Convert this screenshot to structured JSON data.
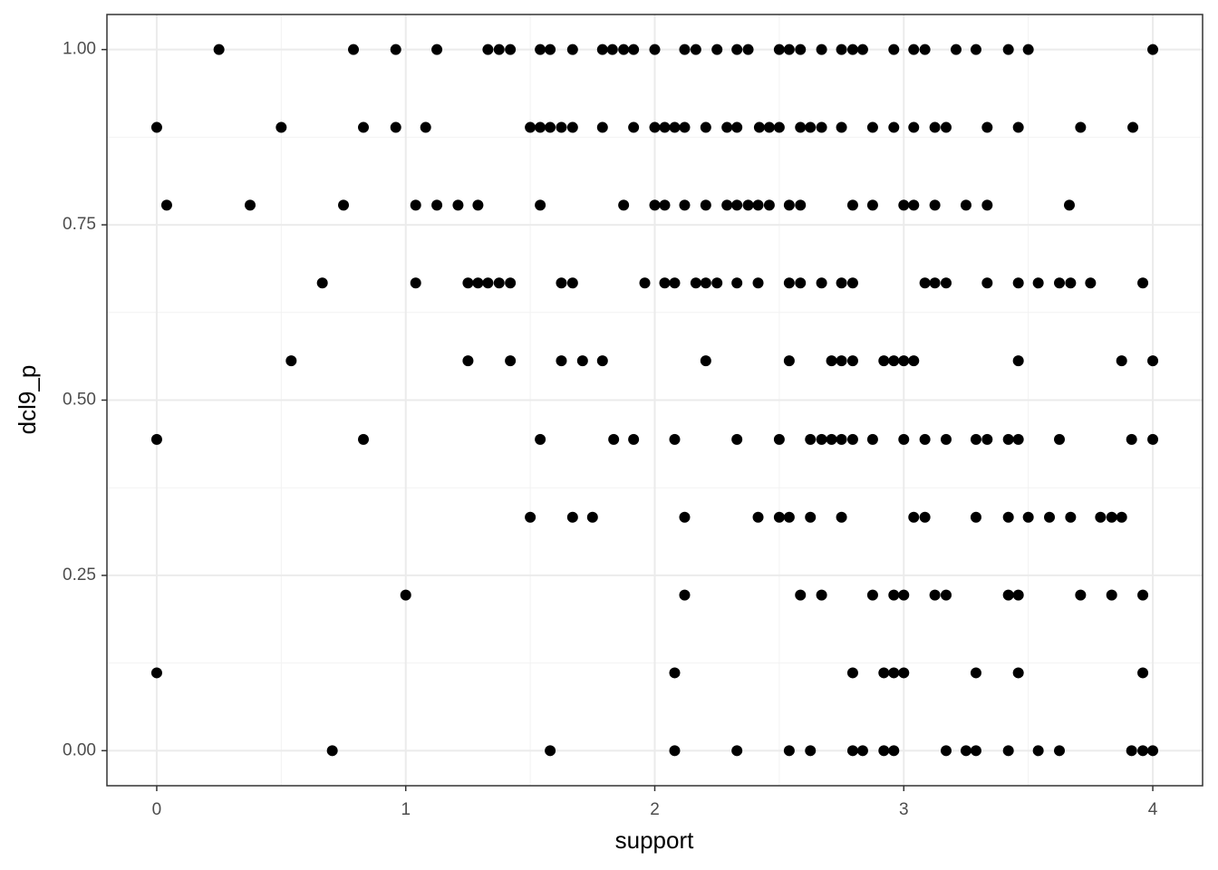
{
  "chart_data": {
    "type": "scatter",
    "xlabel": "support",
    "ylabel": "dcl9_p",
    "color": "#000000",
    "grid": true,
    "xlim": [
      -0.2,
      4.2
    ],
    "ylim": [
      -0.05,
      1.05
    ],
    "xticks": [
      0,
      1,
      2,
      3,
      4
    ],
    "yticks": [
      {
        "value": 0,
        "label": "0.00"
      },
      {
        "value": 0.25,
        "label": "0.25"
      },
      {
        "value": 0.5,
        "label": "0.50"
      },
      {
        "value": 0.75,
        "label": "0.75"
      },
      {
        "value": 1,
        "label": "1.00"
      }
    ],
    "x": [
      0.25,
      0.79,
      0.96,
      1.125,
      1.33,
      1.375,
      1.42,
      1.54,
      1.58,
      1.67,
      1.79,
      1.83,
      1.875,
      1.915,
      2.0,
      2.12,
      2.165,
      2.25,
      2.33,
      2.375,
      2.5,
      2.54,
      2.585,
      2.67,
      2.75,
      2.795,
      2.835,
      2.96,
      3.04,
      3.085,
      3.21,
      3.29,
      3.42,
      3.5,
      4.0,
      0,
      0.5,
      0.83,
      0.96,
      1.08,
      1.5,
      1.54,
      1.58,
      1.625,
      1.67,
      1.79,
      1.915,
      2.0,
      2.04,
      2.08,
      2.12,
      2.205,
      2.29,
      2.33,
      2.42,
      2.46,
      2.5,
      2.585,
      2.625,
      2.67,
      2.75,
      2.875,
      2.96,
      3.04,
      3.125,
      3.17,
      3.335,
      3.46,
      3.71,
      3.92,
      0.04,
      0.375,
      0.75,
      1.04,
      1.125,
      1.21,
      1.29,
      1.54,
      1.875,
      2.0,
      2.04,
      2.12,
      2.205,
      2.29,
      2.33,
      2.375,
      2.415,
      2.46,
      2.54,
      2.585,
      2.795,
      2.875,
      3.0,
      3.04,
      3.125,
      3.25,
      3.335,
      3.665,
      0.665,
      1.04,
      1.25,
      1.29,
      1.33,
      1.375,
      1.42,
      1.625,
      1.67,
      1.96,
      2.04,
      2.08,
      2.165,
      2.205,
      2.25,
      2.33,
      2.415,
      2.54,
      2.585,
      2.67,
      2.75,
      2.795,
      3.085,
      3.125,
      3.17,
      3.335,
      3.46,
      3.54,
      3.625,
      3.67,
      3.75,
      3.96,
      0.54,
      1.25,
      1.42,
      1.625,
      1.71,
      1.79,
      2.205,
      2.54,
      2.71,
      2.75,
      2.795,
      2.92,
      2.96,
      3.0,
      3.04,
      3.46,
      3.875,
      4.0,
      0,
      0.83,
      1.54,
      1.835,
      1.915,
      2.08,
      2.33,
      2.5,
      2.625,
      2.67,
      2.71,
      2.75,
      2.795,
      2.875,
      3.0,
      3.085,
      3.17,
      3.29,
      3.335,
      3.42,
      3.46,
      3.625,
      3.915,
      4.0,
      1.5,
      1.67,
      1.75,
      2.12,
      2.415,
      2.5,
      2.54,
      2.625,
      2.75,
      3.04,
      3.085,
      3.29,
      3.42,
      3.5,
      3.585,
      3.67,
      3.79,
      3.835,
      3.875,
      1.0,
      2.12,
      2.585,
      2.67,
      2.875,
      2.96,
      3.0,
      3.125,
      3.17,
      3.42,
      3.46,
      3.71,
      3.835,
      3.96,
      0,
      2.08,
      2.795,
      2.92,
      2.96,
      3.0,
      3.29,
      3.46,
      3.96,
      0.705,
      1.58,
      2.08,
      2.33,
      2.54,
      2.625,
      2.795,
      2.835,
      2.92,
      2.96,
      3.17,
      3.25,
      3.29,
      3.42,
      3.54,
      3.625,
      3.915,
      3.96,
      4.0
    ],
    "y": [
      1,
      1,
      1,
      1,
      1,
      1,
      1,
      1,
      1,
      1,
      1,
      1,
      1,
      1,
      1,
      1,
      1,
      1,
      1,
      1,
      1,
      1,
      1,
      1,
      1,
      1,
      1,
      1,
      1,
      1,
      1,
      1,
      1,
      1,
      1,
      0.889,
      0.889,
      0.889,
      0.889,
      0.889,
      0.889,
      0.889,
      0.889,
      0.889,
      0.889,
      0.889,
      0.889,
      0.889,
      0.889,
      0.889,
      0.889,
      0.889,
      0.889,
      0.889,
      0.889,
      0.889,
      0.889,
      0.889,
      0.889,
      0.889,
      0.889,
      0.889,
      0.889,
      0.889,
      0.889,
      0.889,
      0.889,
      0.889,
      0.889,
      0.889,
      0.778,
      0.778,
      0.778,
      0.778,
      0.778,
      0.778,
      0.778,
      0.778,
      0.778,
      0.778,
      0.778,
      0.778,
      0.778,
      0.778,
      0.778,
      0.778,
      0.778,
      0.778,
      0.778,
      0.778,
      0.778,
      0.778,
      0.778,
      0.778,
      0.778,
      0.778,
      0.778,
      0.778,
      0.667,
      0.667,
      0.667,
      0.667,
      0.667,
      0.667,
      0.667,
      0.667,
      0.667,
      0.667,
      0.667,
      0.667,
      0.667,
      0.667,
      0.667,
      0.667,
      0.667,
      0.667,
      0.667,
      0.667,
      0.667,
      0.667,
      0.667,
      0.667,
      0.667,
      0.667,
      0.667,
      0.667,
      0.667,
      0.667,
      0.667,
      0.667,
      0.556,
      0.556,
      0.556,
      0.556,
      0.556,
      0.556,
      0.556,
      0.556,
      0.556,
      0.556,
      0.556,
      0.556,
      0.556,
      0.556,
      0.556,
      0.556,
      0.556,
      0.556,
      0.444,
      0.444,
      0.444,
      0.444,
      0.444,
      0.444,
      0.444,
      0.444,
      0.444,
      0.444,
      0.444,
      0.444,
      0.444,
      0.444,
      0.444,
      0.444,
      0.444,
      0.444,
      0.444,
      0.444,
      0.444,
      0.444,
      0.444,
      0.444,
      0.333,
      0.333,
      0.333,
      0.333,
      0.333,
      0.333,
      0.333,
      0.333,
      0.333,
      0.333,
      0.333,
      0.333,
      0.333,
      0.333,
      0.333,
      0.333,
      0.333,
      0.333,
      0.333,
      0.222,
      0.222,
      0.222,
      0.222,
      0.222,
      0.222,
      0.222,
      0.222,
      0.222,
      0.222,
      0.222,
      0.222,
      0.222,
      0.222,
      0.111,
      0.111,
      0.111,
      0.111,
      0.111,
      0.111,
      0.111,
      0.111,
      0.111,
      0,
      0,
      0,
      0,
      0,
      0,
      0,
      0,
      0,
      0,
      0,
      0,
      0,
      0,
      0,
      0,
      0,
      0,
      0
    ]
  }
}
